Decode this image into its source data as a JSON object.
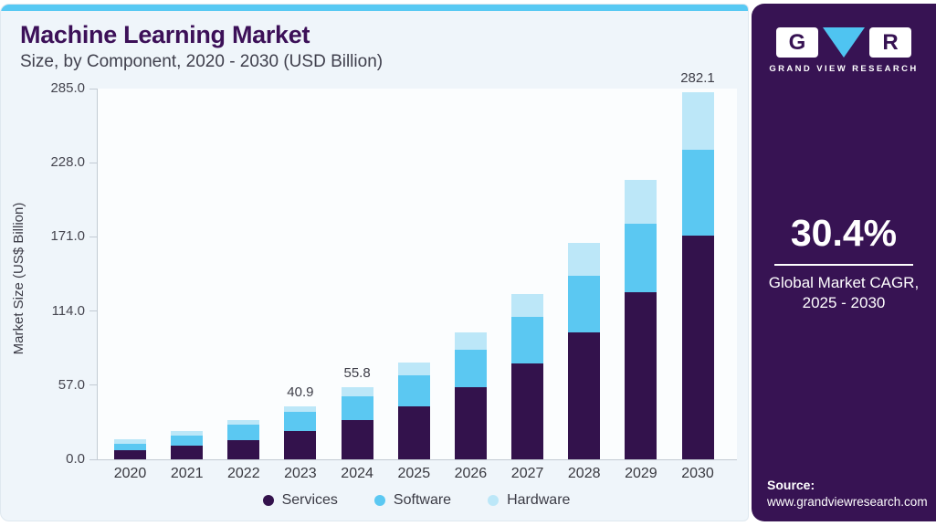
{
  "chart_data": {
    "type": "bar",
    "stacked": true,
    "title": "Machine Learning Market",
    "subtitle": "Size, by Component, 2020 - 2030 (USD Billion)",
    "ylabel": "Market Size (US$ Billion)",
    "xlabel": "",
    "ylim": [
      0,
      285
    ],
    "yticks": [
      "285.0",
      "228.0",
      "171.0",
      "114.0",
      "57.0",
      "0.0"
    ],
    "grid": false,
    "legend_position": "bottom",
    "categories": [
      "2020",
      "2021",
      "2022",
      "2023",
      "2024",
      "2025",
      "2026",
      "2027",
      "2028",
      "2029",
      "2030"
    ],
    "series": [
      {
        "name": "Services",
        "color": "#33124c",
        "values": [
          6.9,
          10.2,
          14.7,
          21.5,
          30.4,
          40.9,
          55.8,
          74.0,
          97.4,
          128.8,
          172.1
        ]
      },
      {
        "name": "Software",
        "color": "#5bc8f2",
        "values": [
          5.1,
          8.0,
          12.1,
          15.1,
          18.0,
          23.9,
          28.3,
          35.3,
          44.0,
          52.6,
          65.6
        ]
      },
      {
        "name": "Hardware",
        "color": "#bce7f8",
        "values": [
          3.3,
          3.6,
          3.6,
          4.3,
          7.4,
          9.9,
          13.8,
          17.8,
          24.7,
          33.1,
          44.4
        ]
      }
    ],
    "bar_labels": [
      "",
      "",
      "",
      "40.9",
      "55.8",
      "",
      "",
      "",
      "",
      "",
      "282.1"
    ]
  },
  "sidebar": {
    "logo": {
      "letter_left": "G",
      "letter_right": "R",
      "brand": "GRAND VIEW RESEARCH"
    },
    "cagr": {
      "value": "30.4%",
      "caption_line1": "Global Market CAGR,",
      "caption_line2": "2025 - 2030"
    },
    "source": {
      "label": "Source:",
      "url": "www.grandviewresearch.com"
    }
  },
  "colors": {
    "accent_strip": "#58c9f3",
    "card_bg": "#eff5fa",
    "sidebar_bg": "#371353",
    "title_text": "#3c1058",
    "axis_line": "#c3cbd4",
    "services": "#33124c",
    "software": "#5bc8f2",
    "hardware": "#bce7f8"
  }
}
